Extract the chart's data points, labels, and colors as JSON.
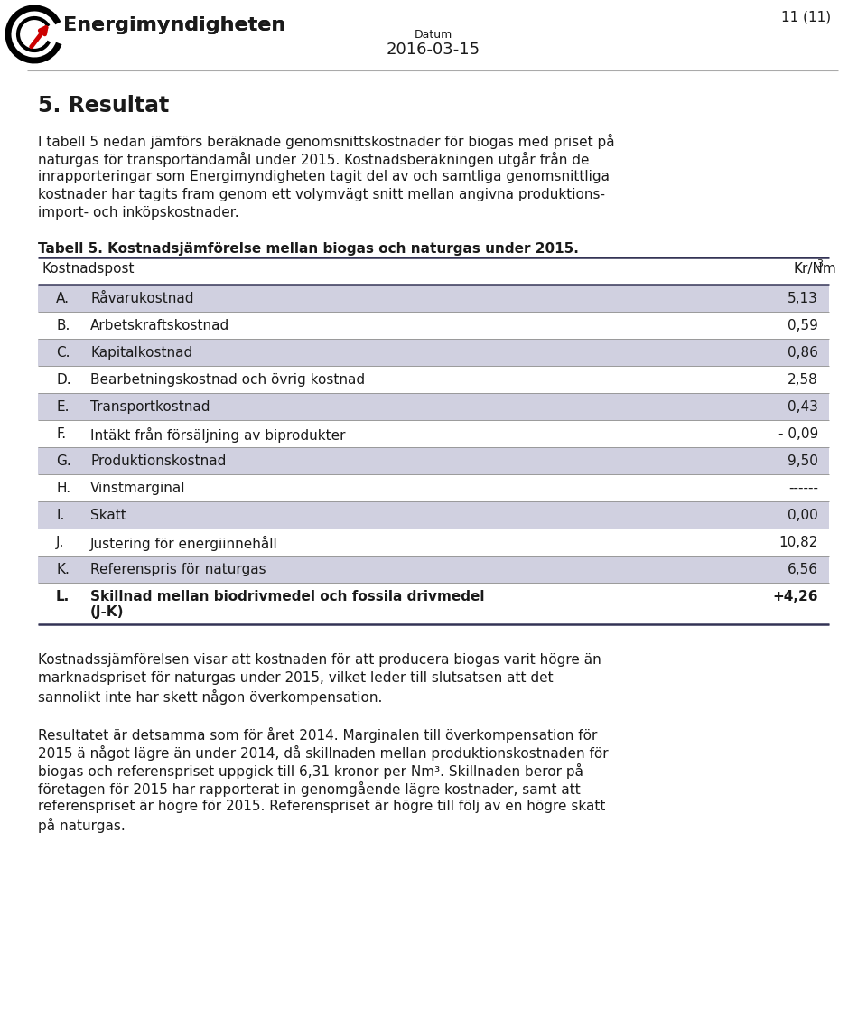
{
  "page_number": "11 (11)",
  "logo_text": "Energimyndigheten",
  "datum_label": "Datum",
  "datum_value": "2016-03-15",
  "section_title": "5. Resultat",
  "table_title": "Tabell 5. Kostnadsjämförelse mellan biogas och naturgas under 2015.",
  "table_header_left": "Kostnadspost",
  "table_header_right": "Kr/Nm",
  "table_rows": [
    {
      "letter": "A.",
      "label": "Råvarukostnad",
      "value": "5,13",
      "shaded": true
    },
    {
      "letter": "B.",
      "label": "Arbetskraftskostnad",
      "value": "0,59",
      "shaded": false
    },
    {
      "letter": "C.",
      "label": "Kapitalkostnad",
      "value": "0,86",
      "shaded": true
    },
    {
      "letter": "D.",
      "label": "Bearbetningskostnad och övrig kostnad",
      "value": "2,58",
      "shaded": false
    },
    {
      "letter": "E.",
      "label": "Transportkostnad",
      "value": "0,43",
      "shaded": true
    },
    {
      "letter": "F.",
      "label": "Intäkt från försäljning av biprodukter",
      "value": "- 0,09",
      "shaded": false
    },
    {
      "letter": "G.",
      "label": "Produktionskostnad",
      "value": "9,50",
      "shaded": true
    },
    {
      "letter": "H.",
      "label": "Vinstmarginal",
      "value": "------",
      "shaded": false
    },
    {
      "letter": "I.",
      "label": "Skatt",
      "value": "0,00",
      "shaded": true
    },
    {
      "letter": "J.",
      "label": "Justering för energiinnehåll",
      "value": "10,82",
      "shaded": false
    },
    {
      "letter": "K.",
      "label": "Referenspris för naturgas",
      "value": "6,56",
      "shaded": true
    },
    {
      "letter": "L.",
      "label": "Skillnad mellan biodrivmedel och fossila drivmedel",
      "label2": "(J-K)",
      "value": "+4,26",
      "shaded": false,
      "bold": true,
      "tall": true
    }
  ],
  "para1_lines": [
    "I tabell 5 nedan jämförs beräknade genomsnittskostnader för biogas med priset på",
    "naturgas för transportändamål under 2015. Kostnadsberäkningen utgår från de",
    "inrapporteringar som Energimyndigheten tagit del av och samtliga genomsnittliga",
    "kostnader har tagits fram genom ett volymvägt snitt mellan angivna produktions-",
    "import- och inköpskostnader."
  ],
  "para2_lines": [
    "Kostnadssjämförelsen visar att kostnaden för att producera biogas varit högre än",
    "marknadspriset för naturgas under 2015, vilket leder till slutsatsen att det",
    "sannolikt inte har skett någon överkompensation."
  ],
  "para3_lines": [
    "Resultatet är detsamma som för året 2014. Marginalen till överkompensation för",
    "2015 ä något lägre än under 2014, då skillnaden mellan produktionskostnaden för",
    "biogas och referenspriset uppgick till 6,31 kronor per Nm³. Skillnaden beror på",
    "företagen för 2015 har rapporterat in genomgående lägre kostnader, samt att",
    "referenspriset är högre för 2015. Referenspriset är högre till följ av en högre skatt",
    "på naturgas."
  ],
  "bg_color": "#ffffff",
  "text_color": "#1a1a1a",
  "shade_color": "#d0d0e0",
  "line_dark": "#333355",
  "line_mid": "#999999"
}
